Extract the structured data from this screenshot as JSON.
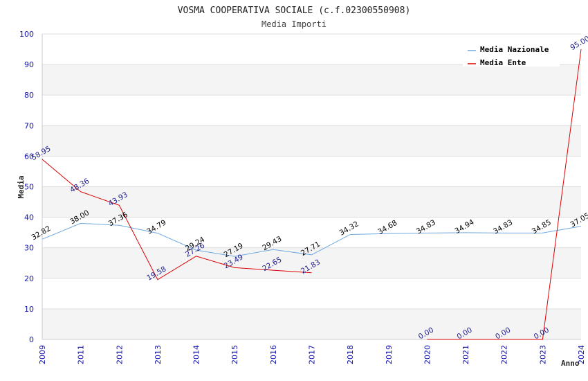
{
  "chart_data": {
    "type": "line",
    "title": "VOSMA COOPERATIVA SOCIALE (c.f.02300550908)",
    "subtitle": "Media Importi",
    "xlabel": "Anno",
    "ylabel": "Media",
    "ylim": [
      0,
      100
    ],
    "yticks": [
      "0",
      "10",
      "20",
      "30",
      "40",
      "50",
      "60",
      "70",
      "80",
      "90",
      "100"
    ],
    "x": [
      "2009",
      "2011",
      "2012",
      "2013",
      "2014",
      "2015",
      "2016",
      "2017",
      "2018",
      "2019",
      "2020",
      "2021",
      "2022",
      "2023",
      "2024"
    ],
    "grid": true,
    "legend_position": "top-right",
    "series": [
      {
        "name": "Media Nazionale",
        "color": "#6fa8e0",
        "label_color": "#000000",
        "values": [
          32.82,
          38.0,
          37.36,
          34.79,
          29.24,
          27.19,
          29.43,
          27.71,
          34.32,
          34.68,
          34.83,
          34.94,
          34.83,
          34.85,
          37.05
        ],
        "labels": [
          "32.82",
          "38.00",
          "37.36",
          "34.79",
          "29.24",
          "27.19",
          "29.43",
          "27.71",
          "34.32",
          "34.68",
          "34.83",
          "34.94",
          "34.83",
          "34.85",
          "37.05"
        ]
      },
      {
        "name": "Media Ente",
        "color": "#dd0000",
        "label_color": "#1a1a8c",
        "values": [
          58.95,
          48.36,
          43.93,
          19.58,
          27.26,
          23.49,
          22.65,
          21.83,
          null,
          null,
          0.0,
          0.0,
          0.0,
          0.0,
          95.0
        ],
        "labels": [
          "58.95",
          "48.36",
          "43.93",
          "19.58",
          "27.26",
          "23.49",
          "22.65",
          "21.83",
          null,
          null,
          "0.00",
          "0.00",
          "0.00",
          "0.00",
          "95.00"
        ]
      }
    ]
  }
}
